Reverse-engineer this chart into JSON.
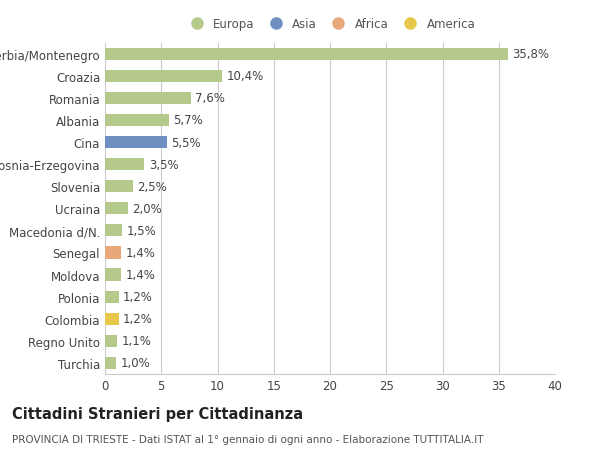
{
  "categories": [
    "Serbia/Montenegro",
    "Croazia",
    "Romania",
    "Albania",
    "Cina",
    "Bosnia-Erzegovina",
    "Slovenia",
    "Ucraina",
    "Macedonia d/N.",
    "Senegal",
    "Moldova",
    "Polonia",
    "Colombia",
    "Regno Unito",
    "Turchia"
  ],
  "values": [
    35.8,
    10.4,
    7.6,
    5.7,
    5.5,
    3.5,
    2.5,
    2.0,
    1.5,
    1.4,
    1.4,
    1.2,
    1.2,
    1.1,
    1.0
  ],
  "labels": [
    "35,8%",
    "10,4%",
    "7,6%",
    "5,7%",
    "5,5%",
    "3,5%",
    "2,5%",
    "2,0%",
    "1,5%",
    "1,4%",
    "1,4%",
    "1,2%",
    "1,2%",
    "1,1%",
    "1,0%"
  ],
  "colors": [
    "#b5c98a",
    "#b5c98a",
    "#b5c98a",
    "#b5c98a",
    "#6e8fc0",
    "#b5c98a",
    "#b5c98a",
    "#b5c98a",
    "#b5c98a",
    "#e8a87a",
    "#b5c98a",
    "#b5c98a",
    "#e8c84a",
    "#b5c98a",
    "#b5c98a"
  ],
  "legend_items": [
    {
      "label": "Europa",
      "color": "#b5c98a"
    },
    {
      "label": "Asia",
      "color": "#6e8fc0"
    },
    {
      "label": "Africa",
      "color": "#e8a87a"
    },
    {
      "label": "America",
      "color": "#e8c84a"
    }
  ],
  "xlim": [
    0,
    40
  ],
  "xticks": [
    0,
    5,
    10,
    15,
    20,
    25,
    30,
    35,
    40
  ],
  "title": "Cittadini Stranieri per Cittadinanza",
  "subtitle": "PROVINCIA DI TRIESTE - Dati ISTAT al 1° gennaio di ogni anno - Elaborazione TUTTITALIA.IT",
  "bg_color": "#ffffff",
  "grid_color": "#cccccc",
  "bar_edge_color": "none",
  "label_fontsize": 8.5,
  "tick_fontsize": 8.5,
  "title_fontsize": 10.5,
  "subtitle_fontsize": 7.5
}
